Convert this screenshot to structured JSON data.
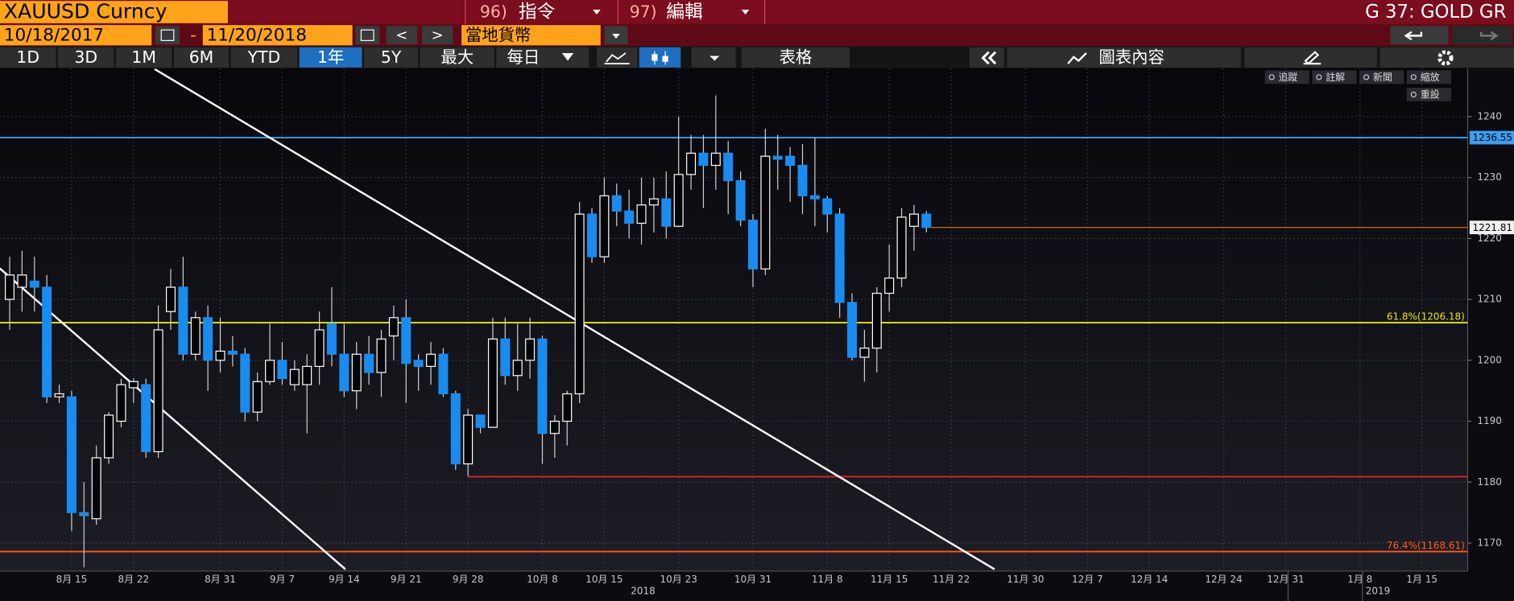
{
  "toolbar": {
    "security": "XAUUSD Curncy",
    "cmd1_num": "96)",
    "cmd1": "指令",
    "cmd2_num": "97)",
    "cmd2": "編輯",
    "function": "G 37: GOLD GR",
    "start_date": "10/18/2017",
    "dash": "-",
    "end_date": "11/20/2018",
    "prev": "<",
    "next": ">",
    "currency": "當地貨幣",
    "periods": [
      "1D",
      "3D",
      "1M",
      "6M",
      "YTD",
      "1年",
      "5Y",
      "最大"
    ],
    "active_period": 5,
    "frequency": "每日",
    "table": "表格",
    "chart_content": "圖表內容"
  },
  "chart_tools": [
    "追蹤",
    "註解",
    "新聞",
    "縮放",
    "重設"
  ],
  "chart_data": {
    "type": "candlestick",
    "categories": [
      null,
      null,
      null,
      null,
      null,
      "8月 15",
      null,
      null,
      null,
      null,
      "8月 22",
      null,
      null,
      null,
      null,
      null,
      null,
      "8月 31",
      null,
      null,
      null,
      null,
      "9月 7",
      null,
      null,
      null,
      null,
      "9月 14",
      null,
      null,
      null,
      null,
      "9月 21",
      null,
      null,
      null,
      null,
      "9月 28",
      null,
      null,
      null,
      null,
      null,
      "10月 8",
      null,
      null,
      null,
      null,
      "10月 15",
      null,
      null,
      null,
      null,
      null,
      "10月 23",
      null,
      null,
      null,
      null,
      null,
      "10月 31",
      null,
      null,
      null,
      null,
      null,
      "11月 8",
      null,
      null,
      null,
      null,
      "11月 15",
      null,
      null,
      null,
      null,
      "11月 22",
      null,
      null,
      null,
      null,
      null,
      "11月 30",
      null,
      null,
      null,
      null,
      "12月 7",
      null,
      null,
      null,
      null,
      "12月 14",
      null,
      null,
      null,
      null,
      null,
      "12月 24",
      null,
      null,
      null,
      null,
      "12月 31",
      null,
      null,
      null,
      null,
      null,
      "1月 8",
      null,
      null,
      null,
      null,
      "1月 15"
    ],
    "open": [
      1210,
      1212,
      1213,
      1212,
      1194,
      1194,
      1175,
      1174,
      1184,
      1190,
      1195.5,
      1196,
      1185,
      1208,
      1212,
      1201,
      1207,
      1200,
      1201.5,
      1201,
      1191.5,
      1196.5,
      1200,
      1196,
      1196,
      1199,
      1206,
      1201,
      1195,
      1201,
      1198,
      1204,
      1207,
      1200,
      1199,
      1201,
      1194.5,
      1183,
      1191,
      1189,
      1203.5,
      1197.5,
      1200,
      1203.5,
      1188,
      1190,
      1194.5,
      1224,
      1217,
      1227,
      1224.5,
      1222.5,
      1225.5,
      1226.5,
      1222,
      1230.5,
      1234,
      1232,
      1234,
      1229.5,
      1223,
      1215,
      1233.5,
      1233.5,
      1232,
      1227,
      1226.5,
      1224,
      1209.5,
      1200.5,
      1202,
      1211,
      1213.5,
      1222,
      1224,
      null,
      null,
      null,
      null,
      null,
      null,
      null,
      null,
      null,
      null,
      null,
      null,
      null,
      null,
      null,
      null,
      null,
      null,
      null,
      null,
      null,
      null,
      null,
      null,
      null,
      null,
      null,
      null,
      null,
      null,
      null,
      null,
      null,
      null,
      null,
      null,
      null,
      null,
      null,
      null
    ],
    "high": [
      1217,
      1218,
      1217,
      1214,
      1196,
      1195,
      1180,
      1186,
      1191.5,
      1197,
      1197,
      1197,
      1209,
      1215,
      1217,
      1208,
      1209,
      1207,
      1204,
      1202,
      1198,
      1206,
      1203,
      1200,
      1201,
      1208,
      1212,
      1206,
      1203,
      1204,
      1205,
      1209,
      1210,
      1201,
      1203,
      1202,
      1195,
      1192,
      1191,
      1207,
      1207,
      1206,
      1207,
      1204,
      1191,
      1195,
      1226,
      1225,
      1230,
      1229,
      1228,
      1230,
      1230,
      1231,
      1240,
      1237,
      1237,
      1243.5,
      1236,
      1231,
      1224,
      1238,
      1237,
      1235,
      1235.5,
      1236.5,
      1227,
      1225,
      1211,
      1205,
      1212,
      1219,
      1225,
      1225.5,
      1224.5,
      null,
      null,
      null,
      null,
      null,
      null,
      null,
      null,
      null,
      null,
      null,
      null,
      null,
      null,
      null,
      null,
      null,
      null,
      null,
      null,
      null,
      null,
      null,
      null,
      null,
      null,
      null,
      null,
      null,
      null,
      null,
      null,
      null,
      null,
      null,
      null,
      null,
      null,
      null,
      null
    ],
    "low": [
      1205,
      1208,
      1208,
      1193,
      1193,
      1172,
      1166,
      1173,
      1183,
      1189,
      1193,
      1184,
      1184,
      1205,
      1200,
      1200,
      1195,
      1198,
      1199,
      1190,
      1190,
      1196,
      1196,
      1195,
      1188,
      1196,
      1199,
      1194,
      1192,
      1196,
      1194,
      1200,
      1193,
      1195,
      1196,
      1194,
      1182,
      1181,
      1188,
      1189,
      1196,
      1195,
      1197,
      1183,
      1184,
      1186,
      1193,
      1216,
      1216,
      1222,
      1220,
      1219,
      1221,
      1220,
      1222,
      1228,
      1225,
      1228,
      1224,
      1222,
      1212,
      1214,
      1228,
      1226,
      1224,
      1222,
      1221,
      1207,
      1200,
      1196.5,
      1198,
      1208,
      1212,
      1218,
      1221,
      null,
      null,
      null,
      null,
      null,
      null,
      null,
      null,
      null,
      null,
      null,
      null,
      null,
      null,
      null,
      null,
      null,
      null,
      null,
      null,
      null,
      null,
      null,
      null,
      null,
      null,
      null,
      null,
      null,
      null,
      null,
      null,
      null,
      null,
      null,
      null,
      null,
      null,
      null,
      null
    ],
    "close": [
      1214,
      1214,
      1212,
      1194,
      1194.5,
      1175,
      1174.5,
      1184,
      1191,
      1196,
      1196.5,
      1185,
      1205,
      1212,
      1201,
      1207,
      1200,
      1201.5,
      1201,
      1191.5,
      1196.5,
      1200,
      1197,
      1198.5,
      1199,
      1205,
      1201,
      1195,
      1201,
      1198,
      1203.5,
      1207,
      1199.5,
      1199,
      1201,
      1194.5,
      1183,
      1191,
      1189,
      1203.5,
      1197.5,
      1200,
      1203.5,
      1188,
      1190,
      1194.5,
      1224,
      1217,
      1227,
      1224.5,
      1222.5,
      1225.5,
      1226.5,
      1222,
      1230.5,
      1234,
      1232,
      1234,
      1229.5,
      1223,
      1215,
      1233.5,
      1233,
      1232,
      1227,
      1226.5,
      1224,
      1209.5,
      1200.5,
      1202,
      1211,
      1213.5,
      1223.5,
      1224,
      1221.81,
      null,
      null,
      null,
      null,
      null,
      null,
      null,
      null,
      null,
      null,
      null,
      null,
      null,
      null,
      null,
      null,
      null,
      null,
      null,
      null,
      null,
      null,
      null,
      null,
      null,
      null,
      null,
      null,
      null,
      null,
      null,
      null,
      null,
      null,
      null,
      null,
      null,
      null,
      null,
      null
    ],
    "up_color": "#ffffff",
    "down_color": "#1a8cf0",
    "last_color": "#e07a1a",
    "ylim": [
      1165.4,
      1247.9
    ],
    "yticks": [
      1170,
      1180,
      1190,
      1200,
      1210,
      1220,
      1230,
      1240
    ],
    "grid": true,
    "levels": [
      {
        "value": 1236.55,
        "color": "#3a9ff0"
      },
      {
        "value": 1206.18,
        "color": "#e8e800",
        "label": "61.8%(1206.18)"
      },
      {
        "value": 1180.9,
        "color": "#e0202a",
        "from": 37
      },
      {
        "value": 1168.61,
        "color": "#ff5a1e",
        "label": "76.4%(1168.61)"
      }
    ],
    "trendlines": [
      {
        "color": "#ffffff",
        "points": [
          [
            11.7,
            1247.8
          ],
          [
            79.5,
            1165.7
          ]
        ]
      },
      {
        "color": "#ffffff",
        "points": [
          [
            -0.8,
            1215.1
          ],
          [
            27.1,
            1165.7
          ]
        ]
      }
    ],
    "year_labels": [
      "2018",
      "2019"
    ]
  }
}
